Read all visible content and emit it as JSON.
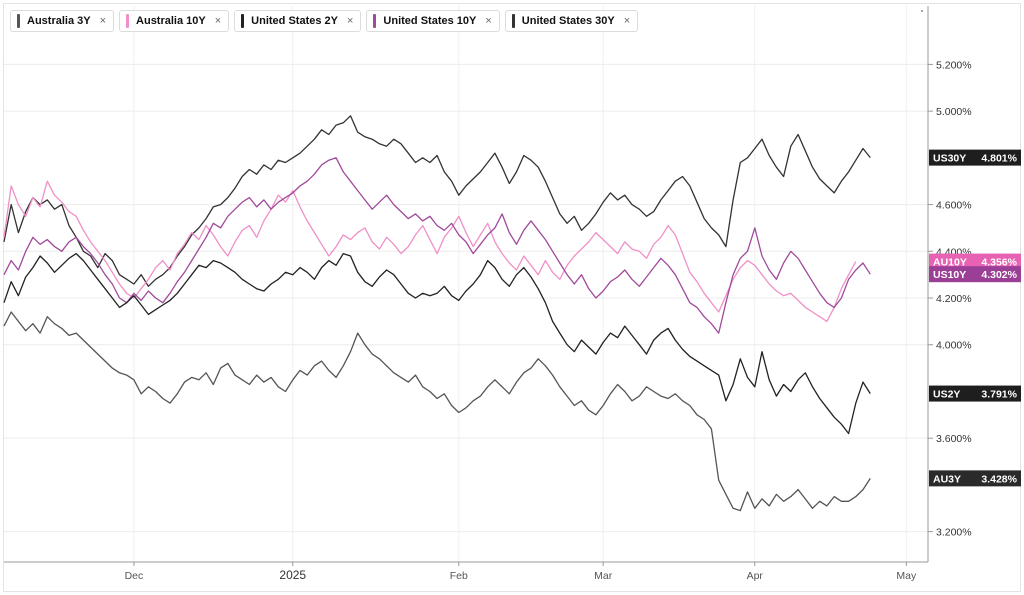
{
  "legend": [
    {
      "label": "Australia 3Y",
      "color": "#555555",
      "close": "×"
    },
    {
      "label": "Australia 10Y",
      "color": "#f090c8",
      "close": "×"
    },
    {
      "label": "United States 2Y",
      "color": "#222222",
      "close": "×"
    },
    {
      "label": "United States 10Y",
      "color": "#a04a9c",
      "close": "×"
    },
    {
      "label": "United States 30Y",
      "color": "#333333",
      "close": "×"
    }
  ],
  "chart_data": {
    "type": "line",
    "y_ticks": [
      "3.200%",
      "3.600%",
      "4.000%",
      "4.200%",
      "4.400%",
      "4.600%",
      "5.000%",
      "5.200%"
    ],
    "y_tick_values": [
      3.2,
      3.6,
      4.0,
      4.2,
      4.4,
      4.6,
      5.0,
      5.2
    ],
    "ylim": [
      3.07,
      5.45
    ],
    "x_range": [
      0,
      128
    ],
    "x_ticks": [
      {
        "label": "Dec",
        "x": 18,
        "major": false
      },
      {
        "label": "2025",
        "x": 40,
        "major": true
      },
      {
        "label": "Feb",
        "x": 63,
        "major": false
      },
      {
        "label": "Mar",
        "x": 83,
        "major": false
      },
      {
        "label": "Apr",
        "x": 104,
        "major": false
      },
      {
        "label": "May",
        "x": 125,
        "major": false
      }
    ],
    "grid": true,
    "legend_position": "top-left",
    "series": [
      {
        "name": "United States 30Y",
        "tag": "US30Y",
        "last_label": "4.801%",
        "last": 4.801,
        "color": "#333333",
        "tag_color": "#1e1e1e",
        "values": [
          4.44,
          4.6,
          4.48,
          4.57,
          4.63,
          4.6,
          4.62,
          4.58,
          4.6,
          4.51,
          4.46,
          4.4,
          4.38,
          4.33,
          4.39,
          4.36,
          4.3,
          4.28,
          4.26,
          4.3,
          4.25,
          4.28,
          4.3,
          4.33,
          4.38,
          4.42,
          4.47,
          4.5,
          4.54,
          4.59,
          4.6,
          4.63,
          4.67,
          4.72,
          4.75,
          4.73,
          4.77,
          4.75,
          4.79,
          4.78,
          4.8,
          4.82,
          4.85,
          4.88,
          4.92,
          4.9,
          4.94,
          4.95,
          4.98,
          4.91,
          4.89,
          4.88,
          4.86,
          4.85,
          4.88,
          4.86,
          4.82,
          4.78,
          4.8,
          4.78,
          4.81,
          4.74,
          4.7,
          4.64,
          4.68,
          4.71,
          4.74,
          4.78,
          4.82,
          4.76,
          4.69,
          4.74,
          4.81,
          4.79,
          4.76,
          4.7,
          4.63,
          4.56,
          4.52,
          4.55,
          4.49,
          4.52,
          4.56,
          4.61,
          4.65,
          4.62,
          4.64,
          4.6,
          4.58,
          4.55,
          4.57,
          4.62,
          4.66,
          4.7,
          4.72,
          4.68,
          4.61,
          4.54,
          4.5,
          4.47,
          4.42,
          4.62,
          4.78,
          4.8,
          4.84,
          4.88,
          4.81,
          4.76,
          4.72,
          4.85,
          4.9,
          4.83,
          4.76,
          4.71,
          4.68,
          4.65,
          4.7,
          4.74,
          4.79,
          4.84,
          4.801
        ]
      },
      {
        "name": "Australia 10Y",
        "tag": "AU10Y",
        "last_label": "4.356%",
        "last": 4.356,
        "color": "#f090c8",
        "tag_color": "#e862b4",
        "values": [
          4.46,
          4.68,
          4.6,
          4.55,
          4.63,
          4.59,
          4.7,
          4.64,
          4.61,
          4.57,
          4.55,
          4.49,
          4.44,
          4.4,
          4.36,
          4.31,
          4.26,
          4.22,
          4.2,
          4.24,
          4.28,
          4.33,
          4.36,
          4.32,
          4.39,
          4.43,
          4.48,
          4.45,
          4.51,
          4.47,
          4.42,
          4.38,
          4.44,
          4.49,
          4.51,
          4.46,
          4.53,
          4.58,
          4.64,
          4.61,
          4.66,
          4.59,
          4.53,
          4.48,
          4.43,
          4.38,
          4.42,
          4.47,
          4.45,
          4.48,
          4.5,
          4.44,
          4.41,
          4.46,
          4.43,
          4.39,
          4.42,
          4.47,
          4.51,
          4.45,
          4.39,
          4.46,
          4.5,
          4.55,
          4.48,
          4.42,
          4.47,
          4.52,
          4.44,
          4.39,
          4.35,
          4.32,
          4.38,
          4.34,
          4.3,
          4.36,
          4.31,
          4.28,
          4.34,
          4.38,
          4.41,
          4.44,
          4.48,
          4.45,
          4.42,
          4.39,
          4.44,
          4.41,
          4.4,
          4.37,
          4.43,
          4.46,
          4.51,
          4.47,
          4.39,
          4.31,
          4.27,
          4.22,
          4.18,
          4.14,
          4.21,
          4.28,
          4.33,
          4.36,
          4.34,
          4.3,
          4.26,
          4.23,
          4.21,
          4.22,
          4.19,
          4.16,
          4.14,
          4.12,
          4.1,
          4.16,
          4.24,
          4.3,
          4.356
        ]
      },
      {
        "name": "United States 10Y",
        "tag": "US10Y",
        "last_label": "4.302%",
        "last": 4.302,
        "color": "#a04a9c",
        "tag_color": "#9a3e96",
        "values": [
          4.3,
          4.36,
          4.32,
          4.4,
          4.46,
          4.43,
          4.45,
          4.42,
          4.4,
          4.44,
          4.46,
          4.42,
          4.39,
          4.35,
          4.3,
          4.26,
          4.2,
          4.18,
          4.22,
          4.19,
          4.23,
          4.2,
          4.18,
          4.22,
          4.27,
          4.31,
          4.36,
          4.41,
          4.46,
          4.52,
          4.5,
          4.55,
          4.58,
          4.61,
          4.63,
          4.59,
          4.62,
          4.58,
          4.61,
          4.63,
          4.65,
          4.68,
          4.7,
          4.73,
          4.77,
          4.79,
          4.8,
          4.74,
          4.7,
          4.66,
          4.62,
          4.58,
          4.61,
          4.64,
          4.6,
          4.57,
          4.54,
          4.56,
          4.53,
          4.55,
          4.51,
          4.49,
          4.52,
          4.47,
          4.44,
          4.39,
          4.43,
          4.47,
          4.5,
          4.56,
          4.48,
          4.43,
          4.49,
          4.53,
          4.49,
          4.45,
          4.4,
          4.35,
          4.3,
          4.26,
          4.3,
          4.24,
          4.2,
          4.23,
          4.27,
          4.29,
          4.32,
          4.28,
          4.25,
          4.29,
          4.33,
          4.37,
          4.34,
          4.3,
          4.24,
          4.18,
          4.16,
          4.12,
          4.09,
          4.05,
          4.18,
          4.3,
          4.37,
          4.4,
          4.5,
          4.38,
          4.32,
          4.28,
          4.35,
          4.4,
          4.37,
          4.32,
          4.27,
          4.22,
          4.18,
          4.16,
          4.2,
          4.28,
          4.32,
          4.35,
          4.302
        ]
      },
      {
        "name": "United States 2Y",
        "tag": "US2Y",
        "last_label": "3.791%",
        "last": 3.791,
        "color": "#222222",
        "tag_color": "#1e1e1e",
        "values": [
          4.18,
          4.27,
          4.21,
          4.29,
          4.33,
          4.38,
          4.35,
          4.31,
          4.34,
          4.37,
          4.39,
          4.36,
          4.32,
          4.28,
          4.24,
          4.2,
          4.16,
          4.18,
          4.21,
          4.17,
          4.13,
          4.15,
          4.17,
          4.19,
          4.22,
          4.26,
          4.3,
          4.34,
          4.33,
          4.36,
          4.35,
          4.33,
          4.31,
          4.28,
          4.26,
          4.24,
          4.23,
          4.26,
          4.28,
          4.31,
          4.3,
          4.33,
          4.31,
          4.28,
          4.33,
          4.36,
          4.34,
          4.39,
          4.38,
          4.31,
          4.27,
          4.25,
          4.29,
          4.32,
          4.3,
          4.26,
          4.22,
          4.2,
          4.22,
          4.21,
          4.22,
          4.25,
          4.21,
          4.19,
          4.23,
          4.26,
          4.3,
          4.36,
          4.33,
          4.28,
          4.25,
          4.3,
          4.33,
          4.29,
          4.24,
          4.18,
          4.1,
          4.05,
          4.0,
          3.97,
          4.02,
          3.99,
          3.96,
          4.01,
          4.05,
          4.03,
          4.08,
          4.04,
          4.0,
          3.96,
          4.02,
          4.05,
          4.07,
          4.02,
          3.98,
          3.95,
          3.93,
          3.91,
          3.89,
          3.87,
          3.76,
          3.83,
          3.94,
          3.86,
          3.82,
          3.97,
          3.85,
          3.78,
          3.83,
          3.8,
          3.85,
          3.88,
          3.82,
          3.77,
          3.73,
          3.69,
          3.66,
          3.62,
          3.75,
          3.84,
          3.791
        ]
      },
      {
        "name": "Australia 3Y",
        "tag": "AU3Y",
        "last_label": "3.428%",
        "last": 3.428,
        "color": "#555555",
        "tag_color": "#2a2a2a",
        "values": [
          4.08,
          4.14,
          4.1,
          4.06,
          4.09,
          4.05,
          4.12,
          4.09,
          4.07,
          4.04,
          4.05,
          4.02,
          3.99,
          3.96,
          3.93,
          3.9,
          3.88,
          3.87,
          3.85,
          3.79,
          3.82,
          3.8,
          3.77,
          3.75,
          3.79,
          3.84,
          3.86,
          3.85,
          3.88,
          3.83,
          3.9,
          3.92,
          3.87,
          3.85,
          3.83,
          3.87,
          3.84,
          3.86,
          3.82,
          3.8,
          3.85,
          3.89,
          3.87,
          3.91,
          3.93,
          3.89,
          3.86,
          3.91,
          3.97,
          4.05,
          4.0,
          3.96,
          3.94,
          3.91,
          3.88,
          3.86,
          3.84,
          3.87,
          3.82,
          3.8,
          3.77,
          3.79,
          3.74,
          3.71,
          3.73,
          3.76,
          3.78,
          3.82,
          3.85,
          3.82,
          3.79,
          3.84,
          3.88,
          3.9,
          3.94,
          3.91,
          3.87,
          3.82,
          3.78,
          3.74,
          3.76,
          3.72,
          3.7,
          3.74,
          3.79,
          3.83,
          3.8,
          3.76,
          3.78,
          3.82,
          3.8,
          3.78,
          3.77,
          3.79,
          3.76,
          3.74,
          3.7,
          3.68,
          3.64,
          3.42,
          3.36,
          3.3,
          3.29,
          3.37,
          3.3,
          3.34,
          3.31,
          3.36,
          3.33,
          3.35,
          3.38,
          3.34,
          3.3,
          3.33,
          3.31,
          3.35,
          3.33,
          3.33,
          3.35,
          3.38,
          3.428
        ]
      }
    ]
  }
}
